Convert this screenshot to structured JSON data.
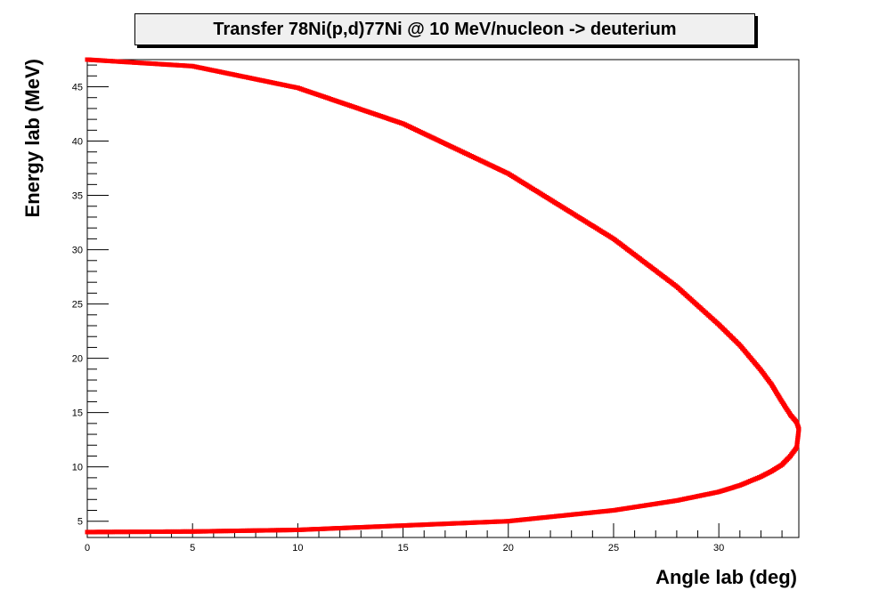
{
  "chart_data": {
    "type": "scatter",
    "title": "Transfer 78Ni(p,d)77Ni @ 10 MeV/nucleon -> deuterium",
    "xlabel": "Angle lab (deg)",
    "ylabel": "Energy lab (MeV)",
    "xlim": [
      0,
      33.8
    ],
    "ylim": [
      3.5,
      47.5
    ],
    "x_ticks": [
      "0",
      "5",
      "10",
      "15",
      "20",
      "25",
      "30"
    ],
    "x_tick_values": [
      0,
      5,
      10,
      15,
      20,
      25,
      30
    ],
    "y_ticks": [
      "5",
      "10",
      "15",
      "20",
      "25",
      "30",
      "35",
      "40",
      "45"
    ],
    "y_tick_values": [
      5,
      10,
      15,
      20,
      25,
      30,
      35,
      40,
      45
    ],
    "grid": false,
    "marker_color": "#ff0000",
    "series": [
      {
        "x": [
          0,
          5,
          10,
          15,
          20,
          25,
          28,
          30,
          31,
          32,
          32.5,
          33,
          33.4,
          33.7,
          33.8,
          33.7,
          33.4,
          33,
          32.5,
          32,
          31,
          30,
          28,
          25,
          20,
          15,
          10,
          5,
          0
        ],
        "y": [
          47.5,
          46.9,
          44.9,
          41.6,
          37,
          31,
          26.6,
          23.1,
          21.2,
          18.9,
          17.6,
          16.0,
          14.8,
          14.1,
          13.5,
          11.8,
          11.0,
          10.2,
          9.6,
          9.1,
          8.3,
          7.7,
          6.9,
          6.0,
          5.0,
          4.6,
          4.2,
          4.05,
          4.0
        ]
      }
    ]
  }
}
